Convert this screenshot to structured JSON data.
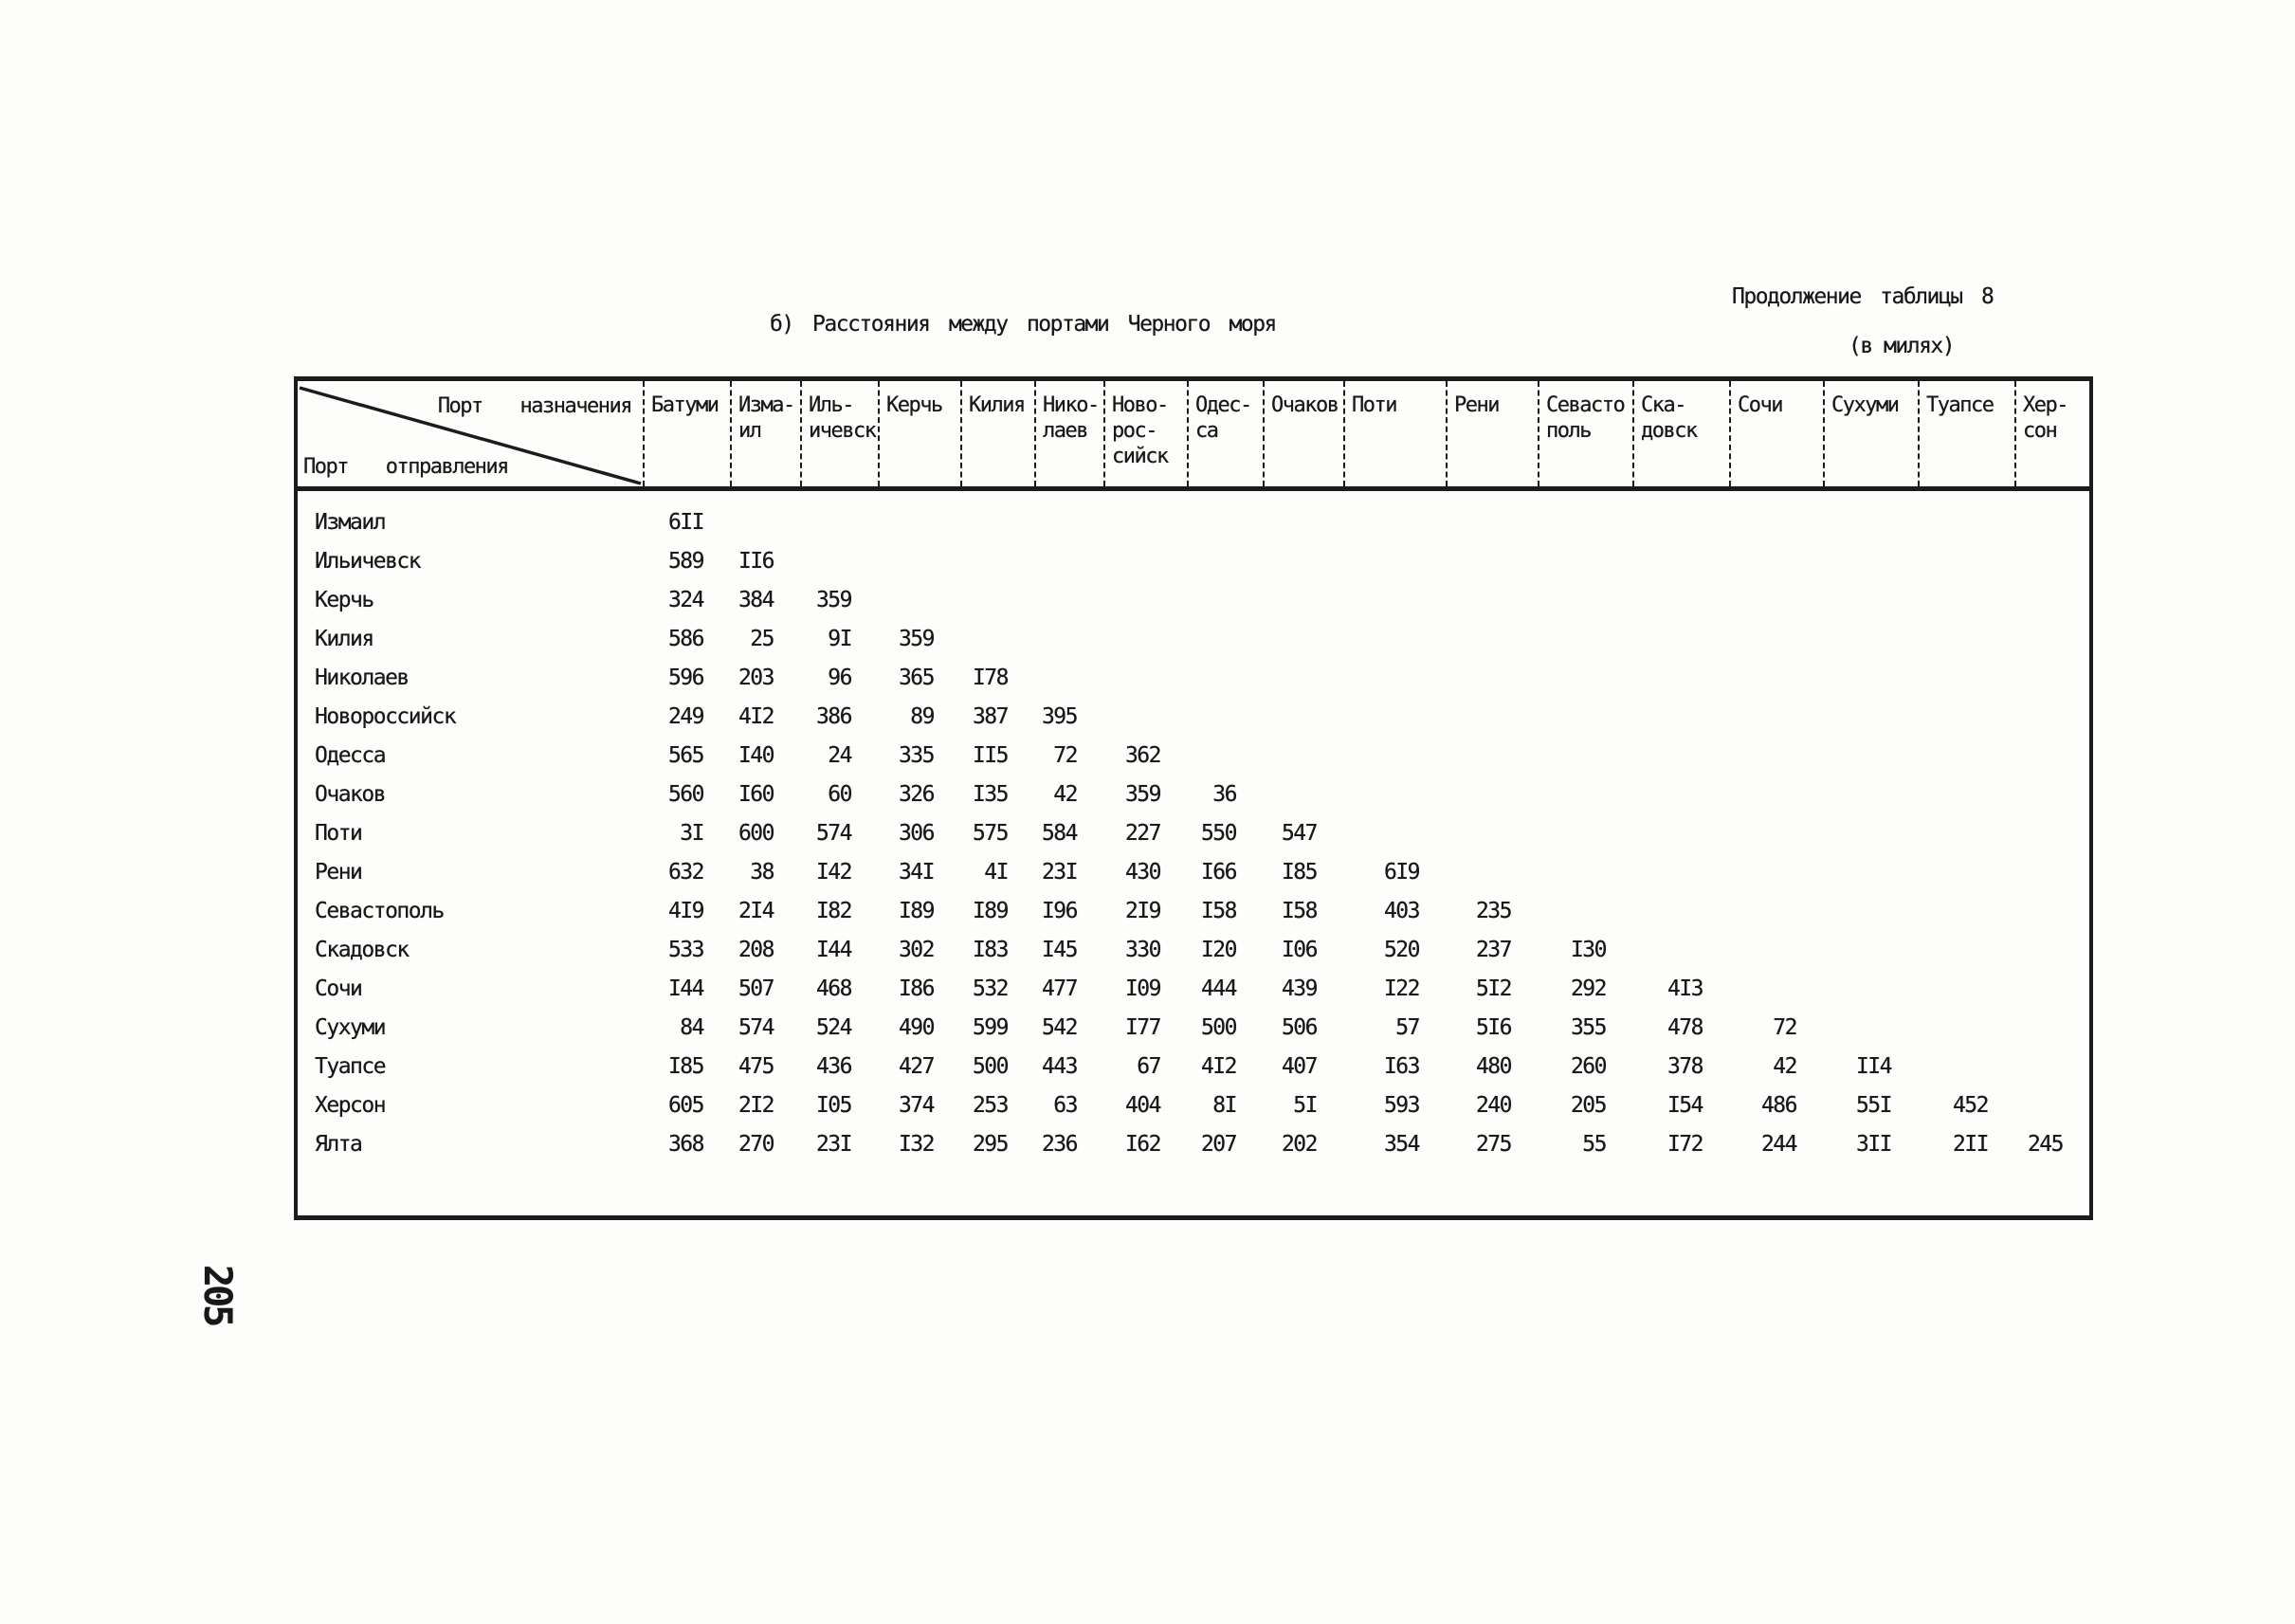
{
  "page": {
    "number": "205",
    "section_title": "б) Расстояния между портами Черного моря",
    "continuation_note": "Продолжение таблицы 8",
    "units_note": "(в милях)"
  },
  "table": {
    "corner": {
      "destination_label": "Порт назначения",
      "origin_label": "Порт отправления"
    },
    "columns": [
      "Батуми",
      "Изма-\nил",
      "Иль-\nичевск",
      "Керчь",
      "Килия",
      "Нико-\nлаев",
      "Ново-\nрос-\nсийск",
      "Одес-\nса",
      "Очаков",
      "Поти",
      "Рени",
      "Севасто\nполь",
      "Ска-\nдовск",
      "Сочи",
      "Сухуми",
      "Туапсе",
      "Хер-\nсон"
    ],
    "rows": [
      {
        "label": "Измаил",
        "values": [
          "6II"
        ]
      },
      {
        "label": "Ильичевск",
        "values": [
          "589",
          "II6"
        ]
      },
      {
        "label": "Керчь",
        "values": [
          "324",
          "384",
          "359"
        ]
      },
      {
        "label": "Килия",
        "values": [
          "586",
          "25",
          "9I",
          "359"
        ]
      },
      {
        "label": "Николаев",
        "values": [
          "596",
          "203",
          "96",
          "365",
          "I78"
        ]
      },
      {
        "label": "Новороссийск",
        "values": [
          "249",
          "4I2",
          "386",
          "89",
          "387",
          "395"
        ]
      },
      {
        "label": "Одесса",
        "values": [
          "565",
          "I40",
          "24",
          "335",
          "II5",
          "72",
          "362"
        ]
      },
      {
        "label": "Очаков",
        "values": [
          "560",
          "I60",
          "60",
          "326",
          "I35",
          "42",
          "359",
          "36"
        ]
      },
      {
        "label": "Поти",
        "values": [
          "3I",
          "600",
          "574",
          "306",
          "575",
          "584",
          "227",
          "550",
          "547"
        ]
      },
      {
        "label": "Рени",
        "values": [
          "632",
          "38",
          "I42",
          "34I",
          "4I",
          "23I",
          "430",
          "I66",
          "I85",
          "6I9"
        ]
      },
      {
        "label": "Севастополь",
        "values": [
          "4I9",
          "2I4",
          "I82",
          "I89",
          "I89",
          "I96",
          "2I9",
          "I58",
          "I58",
          "403",
          "235"
        ]
      },
      {
        "label": "Скадовск",
        "values": [
          "533",
          "208",
          "I44",
          "302",
          "I83",
          "I45",
          "330",
          "I20",
          "I06",
          "520",
          "237",
          "I30"
        ]
      },
      {
        "label": "Сочи",
        "values": [
          "I44",
          "507",
          "468",
          "I86",
          "532",
          "477",
          "I09",
          "444",
          "439",
          "I22",
          "5I2",
          "292",
          "4I3"
        ]
      },
      {
        "label": "Сухуми",
        "values": [
          "84",
          "574",
          "524",
          "490",
          "599",
          "542",
          "I77",
          "500",
          "506",
          "57",
          "5I6",
          "355",
          "478",
          "72"
        ]
      },
      {
        "label": "Туапсе",
        "values": [
          "I85",
          "475",
          "436",
          "427",
          "500",
          "443",
          "67",
          "4I2",
          "407",
          "I63",
          "480",
          "260",
          "378",
          "42",
          "II4"
        ]
      },
      {
        "label": "Херсон",
        "values": [
          "605",
          "2I2",
          "I05",
          "374",
          "253",
          "63",
          "404",
          "8I",
          "5I",
          "593",
          "240",
          "205",
          "I54",
          "486",
          "55I",
          "452"
        ]
      },
      {
        "label": "Ялта",
        "values": [
          "368",
          "270",
          "23I",
          "I32",
          "295",
          "236",
          "I62",
          "207",
          "202",
          "354",
          "275",
          "55",
          "I72",
          "244",
          "3II",
          "2II",
          "245"
        ]
      }
    ]
  }
}
